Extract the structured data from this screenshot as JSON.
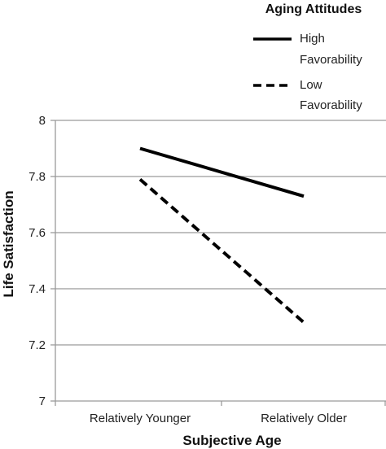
{
  "chart_data": {
    "type": "line",
    "xlabel": "Subjective Age",
    "ylabel": "Life Satisfaction",
    "categories": [
      "Relatively Younger",
      "Relatively Older"
    ],
    "ylim": [
      7,
      8
    ],
    "yticks": [
      "7",
      "7.2",
      "7.4",
      "7.6",
      "7.8",
      "8"
    ],
    "grid": true,
    "legend": {
      "title": "Aging Attitudes",
      "placement": "top-right",
      "entries": [
        {
          "line1": "High",
          "line2": "Favorability",
          "style": "solid"
        },
        {
          "line1": "Low",
          "line2": "Favorability",
          "style": "dashed"
        }
      ]
    },
    "series": [
      {
        "name": "High Favorability",
        "style": "solid",
        "values": [
          7.9,
          7.73
        ]
      },
      {
        "name": "Low Favorability",
        "style": "dashed",
        "values": [
          7.79,
          7.28
        ]
      }
    ],
    "colors": {
      "line": "#000000",
      "grid": "#9a9a9a",
      "axis": "#9a9a9a"
    }
  }
}
